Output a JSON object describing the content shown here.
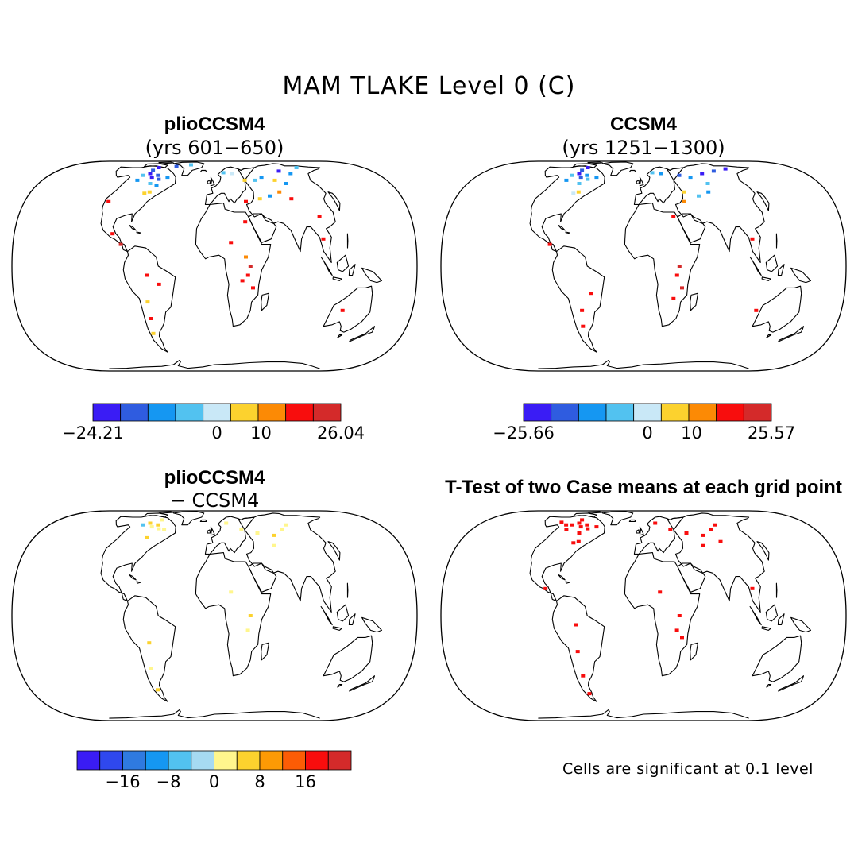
{
  "figure": {
    "title": "MAM TLAKE Level 0 (C)"
  },
  "panels": [
    {
      "id": "plio",
      "title": "plioCCSM4",
      "subtitle": "(yrs 601−650)",
      "colorbar": {
        "colors": [
          "#3a1cf5",
          "#2f5ce0",
          "#1597f2",
          "#52c2f0",
          "#c9e8f7",
          "#fcd22e",
          "#fc8a05",
          "#f80d0d",
          "#d42a2a"
        ],
        "tick_labels": [
          {
            "text": "−24.21",
            "pos": 0
          },
          {
            "text": "0",
            "pos": 4.5
          },
          {
            "text": "10",
            "pos": 6.1
          },
          {
            "text": "26.04",
            "pos": 9
          }
        ]
      },
      "lake_cells": [
        {
          "lon": -100,
          "lat": 58,
          "color": "#3a1cf5"
        },
        {
          "lon": -95,
          "lat": 60,
          "color": "#2f5ce0"
        },
        {
          "lon": -110,
          "lat": 62,
          "color": "#3a1cf5"
        },
        {
          "lon": -85,
          "lat": 56,
          "color": "#2f5ce0"
        },
        {
          "lon": -75,
          "lat": 58,
          "color": "#1597f2"
        },
        {
          "lon": -120,
          "lat": 60,
          "color": "#52c2f0"
        },
        {
          "lon": -105,
          "lat": 66,
          "color": "#2f5ce0"
        },
        {
          "lon": -90,
          "lat": 52,
          "color": "#52c2f0"
        },
        {
          "lon": -80,
          "lat": 45,
          "color": "#fcd22e"
        },
        {
          "lon": -85,
          "lat": 44,
          "color": "#fcd22e"
        },
        {
          "lon": -78,
          "lat": 50,
          "color": "#1597f2"
        },
        {
          "lon": -115,
          "lat": 55,
          "color": "#1597f2"
        },
        {
          "lon": -95,
          "lat": 70,
          "color": "#3a1cf5"
        },
        {
          "lon": -65,
          "lat": 72,
          "color": "#2f5ce0"
        },
        {
          "lon": -40,
          "lat": 75,
          "color": "#52c2f0"
        },
        {
          "lon": 15,
          "lat": 63,
          "color": "#52c2f0"
        },
        {
          "lon": 30,
          "lat": 62,
          "color": "#c9e8f7"
        },
        {
          "lon": 45,
          "lat": 55,
          "color": "#fcd22e"
        },
        {
          "lon": 60,
          "lat": 55,
          "color": "#52c2f0"
        },
        {
          "lon": 75,
          "lat": 58,
          "color": "#1597f2"
        },
        {
          "lon": 90,
          "lat": 55,
          "color": "#fcd22e"
        },
        {
          "lon": 100,
          "lat": 52,
          "color": "#1597f2"
        },
        {
          "lon": 110,
          "lat": 65,
          "color": "#3a1cf5"
        },
        {
          "lon": 130,
          "lat": 62,
          "color": "#1597f2"
        },
        {
          "lon": 140,
          "lat": 70,
          "color": "#52c2f0"
        },
        {
          "lon": 65,
          "lat": 42,
          "color": "#1597f2"
        },
        {
          "lon": 80,
          "lat": 45,
          "color": "#fc8a05"
        },
        {
          "lon": 88,
          "lat": 40,
          "color": "#f80d0d"
        },
        {
          "lon": 52,
          "lat": 40,
          "color": "#fcd22e"
        },
        {
          "lon": 35,
          "lat": 38,
          "color": "#f80d0d"
        },
        {
          "lon": 30,
          "lat": 25,
          "color": "#f80d0d"
        },
        {
          "lon": 15,
          "lat": 13,
          "color": "#f80d0d"
        },
        {
          "lon": 32,
          "lat": 0,
          "color": "#d42a2a"
        },
        {
          "lon": 30,
          "lat": -5,
          "color": "#f80d0d"
        },
        {
          "lon": 35,
          "lat": -12,
          "color": "#f80d0d"
        },
        {
          "lon": 25,
          "lat": -8,
          "color": "#f80d0d"
        },
        {
          "lon": 28,
          "lat": 5,
          "color": "#fc8a05"
        },
        {
          "lon": 100,
          "lat": 15,
          "color": "#f80d0d"
        },
        {
          "lon": 105,
          "lat": 28,
          "color": "#f80d0d"
        },
        {
          "lon": -60,
          "lat": -5,
          "color": "#f80d0d"
        },
        {
          "lon": -50,
          "lat": -10,
          "color": "#f80d0d"
        },
        {
          "lon": -63,
          "lat": -20,
          "color": "#fcd22e"
        },
        {
          "lon": -65,
          "lat": -30,
          "color": "#f80d0d"
        },
        {
          "lon": -70,
          "lat": -40,
          "color": "#fcd22e"
        },
        {
          "lon": -95,
          "lat": 18,
          "color": "#f80d0d"
        },
        {
          "lon": -118,
          "lat": 38,
          "color": "#f80d0d"
        },
        {
          "lon": -85,
          "lat": 12,
          "color": "#d42a2a"
        },
        {
          "lon": 125,
          "lat": -25,
          "color": "#f80d0d"
        }
      ]
    },
    {
      "id": "ccsm4",
      "title": "CCSM4",
      "subtitle": "(yrs 1251−1300)",
      "colorbar": {
        "colors": [
          "#3a1cf5",
          "#2f5ce0",
          "#1597f2",
          "#52c2f0",
          "#c9e8f7",
          "#fcd22e",
          "#fc8a05",
          "#f80d0d",
          "#d42a2a"
        ],
        "tick_labels": [
          {
            "text": "−25.66",
            "pos": 0
          },
          {
            "text": "0",
            "pos": 4.5
          },
          {
            "text": "10",
            "pos": 6.1
          },
          {
            "text": "25.57",
            "pos": 9
          }
        ]
      },
      "lake_cells": [
        {
          "lon": -100,
          "lat": 58,
          "color": "#2f5ce0"
        },
        {
          "lon": -95,
          "lat": 60,
          "color": "#1597f2"
        },
        {
          "lon": -110,
          "lat": 62,
          "color": "#3a1cf5"
        },
        {
          "lon": -85,
          "lat": 56,
          "color": "#52c2f0"
        },
        {
          "lon": -75,
          "lat": 58,
          "color": "#1597f2"
        },
        {
          "lon": -120,
          "lat": 60,
          "color": "#52c2f0"
        },
        {
          "lon": -105,
          "lat": 66,
          "color": "#2f5ce0"
        },
        {
          "lon": -90,
          "lat": 52,
          "color": "#52c2f0"
        },
        {
          "lon": -80,
          "lat": 45,
          "color": "#fcd22e"
        },
        {
          "lon": -85,
          "lat": 44,
          "color": "#c9e8f7"
        },
        {
          "lon": -115,
          "lat": 55,
          "color": "#1597f2"
        },
        {
          "lon": -95,
          "lat": 70,
          "color": "#3a1cf5"
        },
        {
          "lon": 15,
          "lat": 63,
          "color": "#52c2f0"
        },
        {
          "lon": 30,
          "lat": 62,
          "color": "#1597f2"
        },
        {
          "lon": 60,
          "lat": 60,
          "color": "#2f5ce0"
        },
        {
          "lon": 75,
          "lat": 58,
          "color": "#1597f2"
        },
        {
          "lon": 100,
          "lat": 62,
          "color": "#3a1cf5"
        },
        {
          "lon": 120,
          "lat": 65,
          "color": "#2f5ce0"
        },
        {
          "lon": 140,
          "lat": 68,
          "color": "#3a1cf5"
        },
        {
          "lon": 90,
          "lat": 52,
          "color": "#52c2f0"
        },
        {
          "lon": 80,
          "lat": 45,
          "color": "#1597f2"
        },
        {
          "lon": 65,
          "lat": 42,
          "color": "#52c2f0"
        },
        {
          "lon": 50,
          "lat": 45,
          "color": "#fcd22e"
        },
        {
          "lon": 45,
          "lat": 38,
          "color": "#fc8a05"
        },
        {
          "lon": 30,
          "lat": 28,
          "color": "#f80d0d"
        },
        {
          "lon": 32,
          "lat": 0,
          "color": "#d42a2a"
        },
        {
          "lon": 30,
          "lat": -5,
          "color": "#f80d0d"
        },
        {
          "lon": 35,
          "lat": -12,
          "color": "#d42a2a"
        },
        {
          "lon": 28,
          "lat": -18,
          "color": "#f80d0d"
        },
        {
          "lon": 100,
          "lat": 15,
          "color": "#f80d0d"
        },
        {
          "lon": -85,
          "lat": 12,
          "color": "#f80d0d"
        },
        {
          "lon": -60,
          "lat": -25,
          "color": "#f80d0d"
        },
        {
          "lon": -65,
          "lat": -35,
          "color": "#f80d0d"
        },
        {
          "lon": -48,
          "lat": -15,
          "color": "#f80d0d"
        },
        {
          "lon": 110,
          "lat": -25,
          "color": "#f80d0d"
        }
      ]
    },
    {
      "id": "diff",
      "title": "plioCCSM4",
      "subtitle": "− CCSM4",
      "colorbar": {
        "colors": [
          "#3a1cf5",
          "#2f48ee",
          "#2f7ae0",
          "#1597f2",
          "#52c2f0",
          "#a6daf2",
          "#fff68d",
          "#fcd22e",
          "#fc9a05",
          "#fc5c05",
          "#f80d0d",
          "#d42a2a"
        ],
        "tick_labels": [
          {
            "text": "−16",
            "pos": 2
          },
          {
            "text": "−8",
            "pos": 4
          },
          {
            "text": "0",
            "pos": 6
          },
          {
            "text": "8",
            "pos": 8
          },
          {
            "text": "16",
            "pos": 10
          }
        ]
      },
      "lake_cells": [
        {
          "lon": -100,
          "lat": 58,
          "color": "#fff68d"
        },
        {
          "lon": -95,
          "lat": 60,
          "color": "#fcd22e"
        },
        {
          "lon": -85,
          "lat": 56,
          "color": "#fff68d"
        },
        {
          "lon": -110,
          "lat": 62,
          "color": "#fcd22e"
        },
        {
          "lon": -75,
          "lat": 55,
          "color": "#fff68d"
        },
        {
          "lon": -88,
          "lat": 48,
          "color": "#fcd22e"
        },
        {
          "lon": -120,
          "lat": 60,
          "color": "#52c2f0"
        },
        {
          "lon": -90,
          "lat": 66,
          "color": "#fff68d"
        },
        {
          "lon": 20,
          "lat": 62,
          "color": "#fff68d"
        },
        {
          "lon": 40,
          "lat": 55,
          "color": "#fff68d"
        },
        {
          "lon": 60,
          "lat": 52,
          "color": "#fff68d"
        },
        {
          "lon": 80,
          "lat": 50,
          "color": "#fcd22e"
        },
        {
          "lon": 100,
          "lat": 55,
          "color": "#fff68d"
        },
        {
          "lon": 120,
          "lat": 60,
          "color": "#fff68d"
        },
        {
          "lon": 70,
          "lat": 42,
          "color": "#fff68d"
        },
        {
          "lon": 32,
          "lat": 0,
          "color": "#fcd22e"
        },
        {
          "lon": 30,
          "lat": -8,
          "color": "#fff68d"
        },
        {
          "lon": -60,
          "lat": -15,
          "color": "#fcd22e"
        },
        {
          "lon": -65,
          "lat": -30,
          "color": "#fff68d"
        },
        {
          "lon": -70,
          "lat": -45,
          "color": "#fcd22e"
        },
        {
          "lon": 15,
          "lat": 13,
          "color": "#fff68d"
        }
      ]
    },
    {
      "id": "ttest",
      "title": "T-Test of two Case means at each grid point",
      "subtitle": "",
      "note": "Cells are significant at 0.1 level",
      "lake_cells": [
        {
          "lon": -100,
          "lat": 58,
          "color": "#f80d0d"
        },
        {
          "lon": -95,
          "lat": 60,
          "color": "#f80d0d"
        },
        {
          "lon": -110,
          "lat": 62,
          "color": "#f80d0d"
        },
        {
          "lon": -85,
          "lat": 56,
          "color": "#f80d0d"
        },
        {
          "lon": -75,
          "lat": 58,
          "color": "#f80d0d"
        },
        {
          "lon": -120,
          "lat": 60,
          "color": "#f80d0d"
        },
        {
          "lon": -105,
          "lat": 66,
          "color": "#f80d0d"
        },
        {
          "lon": -90,
          "lat": 52,
          "color": "#f80d0d"
        },
        {
          "lon": -80,
          "lat": 45,
          "color": "#f80d0d"
        },
        {
          "lon": -85,
          "lat": 44,
          "color": "#f80d0d"
        },
        {
          "lon": -115,
          "lat": 55,
          "color": "#f80d0d"
        },
        {
          "lon": -130,
          "lat": 60,
          "color": "#f80d0d"
        },
        {
          "lon": -140,
          "lat": 63,
          "color": "#f80d0d"
        },
        {
          "lon": 20,
          "lat": 62,
          "color": "#f80d0d"
        },
        {
          "lon": 40,
          "lat": 55,
          "color": "#f80d0d"
        },
        {
          "lon": 60,
          "lat": 52,
          "color": "#f80d0d"
        },
        {
          "lon": 80,
          "lat": 50,
          "color": "#f80d0d"
        },
        {
          "lon": 100,
          "lat": 55,
          "color": "#f80d0d"
        },
        {
          "lon": 120,
          "lat": 60,
          "color": "#f80d0d"
        },
        {
          "lon": 95,
          "lat": 45,
          "color": "#f80d0d"
        },
        {
          "lon": 70,
          "lat": 42,
          "color": "#f80d0d"
        },
        {
          "lon": 32,
          "lat": 0,
          "color": "#f80d0d"
        },
        {
          "lon": 30,
          "lat": -8,
          "color": "#f80d0d"
        },
        {
          "lon": 35,
          "lat": -12,
          "color": "#f80d0d"
        },
        {
          "lon": -60,
          "lat": -5,
          "color": "#f80d0d"
        },
        {
          "lon": -62,
          "lat": -20,
          "color": "#f80d0d"
        },
        {
          "lon": -65,
          "lat": -35,
          "color": "#f80d0d"
        },
        {
          "lon": -70,
          "lat": -48,
          "color": "#f80d0d"
        },
        {
          "lon": -90,
          "lat": 15,
          "color": "#f80d0d"
        },
        {
          "lon": 100,
          "lat": 15,
          "color": "#f80d0d"
        },
        {
          "lon": 15,
          "lat": 13,
          "color": "#f80d0d"
        }
      ]
    }
  ]
}
